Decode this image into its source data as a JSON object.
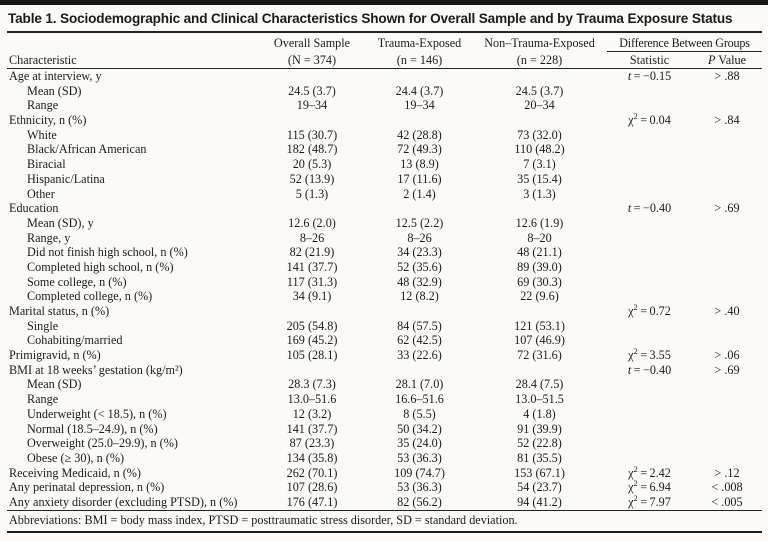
{
  "colors": {
    "ink": "#1b1b1b",
    "rule": "#242424",
    "background": "#fbfaf7"
  },
  "title": "Table 1. Sociodemographic and Clinical Characteristics Shown for Overall Sample and by Trauma Exposure Status",
  "table": {
    "col_headers": {
      "characteristic": "Characteristic",
      "groups": [
        {
          "line1": "Overall Sample",
          "line2": "(N = 374)"
        },
        {
          "line1": "Trauma-Exposed",
          "line2": "(n = 146)"
        },
        {
          "line1": "Non–Trauma-Exposed",
          "line2": "(n = 228)"
        }
      ],
      "diff_header": "Difference Between Groups",
      "statistic": "Statistic",
      "p_value_italic": "P",
      "p_value_rest": " Value"
    },
    "rows": [
      {
        "label": "Age at interview, y",
        "indent": 0,
        "overall": "",
        "trauma": "",
        "non_trauma": "",
        "stat_type": "t",
        "stat_value": "−0.15",
        "p": "> .88"
      },
      {
        "label": "Mean (SD)",
        "indent": 1,
        "overall": "24.5 (3.7)",
        "trauma": "24.4 (3.7)",
        "non_trauma": "24.5 (3.7)",
        "stat_type": "",
        "stat_value": "",
        "p": ""
      },
      {
        "label": "Range",
        "indent": 1,
        "overall": "19–34",
        "trauma": "19–34",
        "non_trauma": "20–34",
        "stat_type": "",
        "stat_value": "",
        "p": ""
      },
      {
        "label": "Ethnicity, n (%)",
        "indent": 0,
        "overall": "",
        "trauma": "",
        "non_trauma": "",
        "stat_type": "chi2",
        "stat_value": "0.04",
        "p": "> .84"
      },
      {
        "label": "White",
        "indent": 1,
        "overall": "115 (30.7)",
        "trauma": "42 (28.8)",
        "non_trauma": "73 (32.0)",
        "stat_type": "",
        "stat_value": "",
        "p": ""
      },
      {
        "label": "Black/African American",
        "indent": 1,
        "overall": "182 (48.7)",
        "trauma": "72 (49.3)",
        "non_trauma": "110 (48.2)",
        "stat_type": "",
        "stat_value": "",
        "p": ""
      },
      {
        "label": "Biracial",
        "indent": 1,
        "overall": "20 (5.3)",
        "trauma": "13 (8.9)",
        "non_trauma": "7 (3.1)",
        "stat_type": "",
        "stat_value": "",
        "p": ""
      },
      {
        "label": "Hispanic/Latina",
        "indent": 1,
        "overall": "52 (13.9)",
        "trauma": "17 (11.6)",
        "non_trauma": "35 (15.4)",
        "stat_type": "",
        "stat_value": "",
        "p": ""
      },
      {
        "label": "Other",
        "indent": 1,
        "overall": "5 (1.3)",
        "trauma": "2 (1.4)",
        "non_trauma": "3 (1.3)",
        "stat_type": "",
        "stat_value": "",
        "p": ""
      },
      {
        "label": "Education",
        "indent": 0,
        "overall": "",
        "trauma": "",
        "non_trauma": "",
        "stat_type": "t",
        "stat_value": "−0.40",
        "p": "> .69"
      },
      {
        "label": "Mean (SD), y",
        "indent": 1,
        "overall": "12.6 (2.0)",
        "trauma": "12.5 (2.2)",
        "non_trauma": "12.6 (1.9)",
        "stat_type": "",
        "stat_value": "",
        "p": ""
      },
      {
        "label": "Range, y",
        "indent": 1,
        "overall": "8–26",
        "trauma": "8–26",
        "non_trauma": "8–20",
        "stat_type": "",
        "stat_value": "",
        "p": ""
      },
      {
        "label": "Did not finish high school, n (%)",
        "indent": 1,
        "overall": "82 (21.9)",
        "trauma": "34 (23.3)",
        "non_trauma": "48 (21.1)",
        "stat_type": "",
        "stat_value": "",
        "p": ""
      },
      {
        "label": "Completed high school, n (%)",
        "indent": 1,
        "overall": "141 (37.7)",
        "trauma": "52 (35.6)",
        "non_trauma": "89 (39.0)",
        "stat_type": "",
        "stat_value": "",
        "p": ""
      },
      {
        "label": "Some college, n (%)",
        "indent": 1,
        "overall": "117 (31.3)",
        "trauma": "48 (32.9)",
        "non_trauma": "69 (30.3)",
        "stat_type": "",
        "stat_value": "",
        "p": ""
      },
      {
        "label": "Completed college, n (%)",
        "indent": 1,
        "overall": "34 (9.1)",
        "trauma": "12 (8.2)",
        "non_trauma": "22 (9.6)",
        "stat_type": "",
        "stat_value": "",
        "p": ""
      },
      {
        "label": "Marital status, n (%)",
        "indent": 0,
        "overall": "",
        "trauma": "",
        "non_trauma": "",
        "stat_type": "chi2",
        "stat_value": "0.72",
        "p": "> .40"
      },
      {
        "label": "Single",
        "indent": 1,
        "overall": "205 (54.8)",
        "trauma": "84 (57.5)",
        "non_trauma": "121 (53.1)",
        "stat_type": "",
        "stat_value": "",
        "p": ""
      },
      {
        "label": "Cohabiting/married",
        "indent": 1,
        "overall": "169 (45.2)",
        "trauma": "62 (42.5)",
        "non_trauma": "107 (46.9)",
        "stat_type": "",
        "stat_value": "",
        "p": ""
      },
      {
        "label": "Primigravid, n (%)",
        "indent": 0,
        "overall": "105 (28.1)",
        "trauma": "33 (22.6)",
        "non_trauma": "72 (31.6)",
        "stat_type": "chi2",
        "stat_value": "3.55",
        "p": "> .06"
      },
      {
        "label": "BMI at 18 weeks’ gestation (kg/m²)",
        "indent": 0,
        "overall": "",
        "trauma": "",
        "non_trauma": "",
        "stat_type": "t",
        "stat_value": "−0.40",
        "p": "> .69"
      },
      {
        "label": "Mean (SD)",
        "indent": 1,
        "overall": "28.3 (7.3)",
        "trauma": "28.1 (7.0)",
        "non_trauma": "28.4 (7.5)",
        "stat_type": "",
        "stat_value": "",
        "p": ""
      },
      {
        "label": "Range",
        "indent": 1,
        "overall": "13.0–51.6",
        "trauma": "16.6–51.6",
        "non_trauma": "13.0–51.5",
        "stat_type": "",
        "stat_value": "",
        "p": ""
      },
      {
        "label": "Underweight (< 18.5), n (%)",
        "indent": 1,
        "overall": "12 (3.2)",
        "trauma": "8 (5.5)",
        "non_trauma": "4 (1.8)",
        "stat_type": "",
        "stat_value": "",
        "p": ""
      },
      {
        "label": "Normal (18.5–24.9), n (%)",
        "indent": 1,
        "overall": "141 (37.7)",
        "trauma": "50 (34.2)",
        "non_trauma": "91 (39.9)",
        "stat_type": "",
        "stat_value": "",
        "p": ""
      },
      {
        "label": "Overweight (25.0–29.9), n (%)",
        "indent": 1,
        "overall": "87 (23.3)",
        "trauma": "35 (24.0)",
        "non_trauma": "52 (22.8)",
        "stat_type": "",
        "stat_value": "",
        "p": ""
      },
      {
        "label": "Obese (≥ 30), n (%)",
        "indent": 1,
        "overall": "134 (35.8)",
        "trauma": "53 (36.3)",
        "non_trauma": "81 (35.5)",
        "stat_type": "",
        "stat_value": "",
        "p": ""
      },
      {
        "label": "Receiving Medicaid, n (%)",
        "indent": 0,
        "overall": "262 (70.1)",
        "trauma": "109 (74.7)",
        "non_trauma": "153 (67.1)",
        "stat_type": "chi2",
        "stat_value": "2.42",
        "p": "> .12"
      },
      {
        "label": "Any perinatal depression, n (%)",
        "indent": 0,
        "overall": "107 (28.6)",
        "trauma": "53 (36.3)",
        "non_trauma": "54 (23.7)",
        "stat_type": "chi2",
        "stat_value": "6.94",
        "p": "< .008"
      },
      {
        "label": "Any anxiety disorder (excluding PTSD), n (%)",
        "indent": 0,
        "overall": "176 (47.1)",
        "trauma": "82 (56.2)",
        "non_trauma": "94 (41.2)",
        "stat_type": "chi2",
        "stat_value": "7.97",
        "p": "< .005"
      }
    ],
    "footnote": "Abbreviations: BMI = body mass index, PTSD = posttraumatic stress disorder, SD = standard deviation."
  }
}
